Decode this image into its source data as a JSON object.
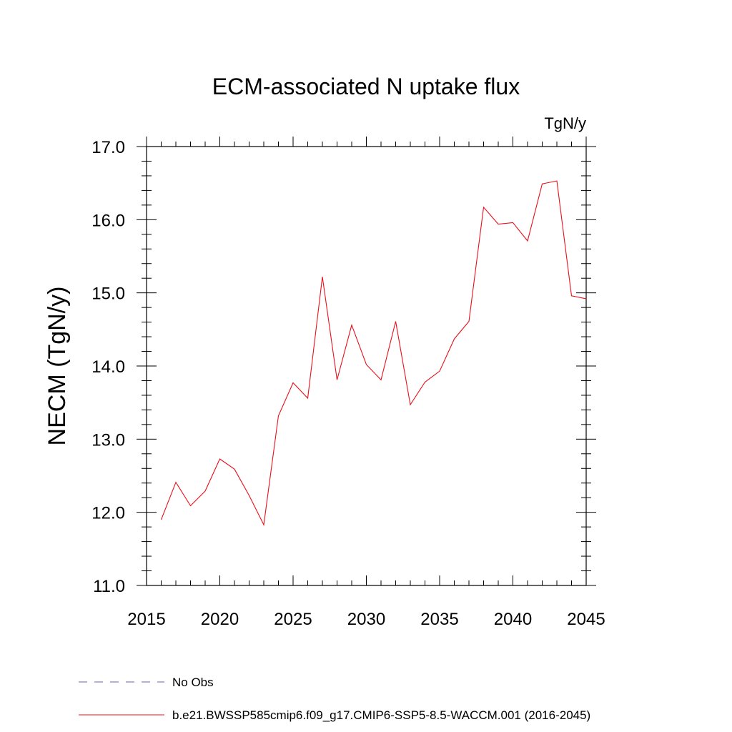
{
  "chart_data": {
    "type": "line",
    "title": "ECM-associated N uptake flux",
    "units_label": "TgN/y",
    "xlabel": "",
    "ylabel": "NECM  (TgN/y)",
    "xlim": [
      2015,
      2045
    ],
    "ylim": [
      11.0,
      17.0
    ],
    "x_ticks": [
      "2015",
      "2020",
      "2025",
      "2030",
      "2035",
      "2040",
      "2045"
    ],
    "y_ticks": [
      "11.0",
      "12.0",
      "13.0",
      "14.0",
      "15.0",
      "16.0",
      "17.0"
    ],
    "grid": false,
    "legend_position": "bottom",
    "series": [
      {
        "name": "b.e21.BWSSP585cmip6.f09_g17.CMIP6-SSP5-8.5-WACCM.001 (2016-2045)",
        "color": "#e8101a",
        "style": "solid",
        "x": [
          2016,
          2017,
          2018,
          2019,
          2020,
          2021,
          2022,
          2023,
          2024,
          2025,
          2026,
          2027,
          2028,
          2029,
          2030,
          2031,
          2032,
          2033,
          2034,
          2035,
          2036,
          2037,
          2038,
          2039,
          2040,
          2041,
          2042,
          2043,
          2044,
          2045
        ],
        "values": [
          11.9,
          12.41,
          12.09,
          12.29,
          12.73,
          12.59,
          12.23,
          11.83,
          13.32,
          13.77,
          13.56,
          15.22,
          13.81,
          14.56,
          14.02,
          13.81,
          14.61,
          13.47,
          13.78,
          13.93,
          14.37,
          14.61,
          16.17,
          15.94,
          15.96,
          15.71,
          16.49,
          16.53,
          14.96,
          14.92
        ]
      },
      {
        "name": "No Obs",
        "color": "#6d5fb0",
        "style": "dashed",
        "x": [],
        "values": []
      }
    ]
  }
}
